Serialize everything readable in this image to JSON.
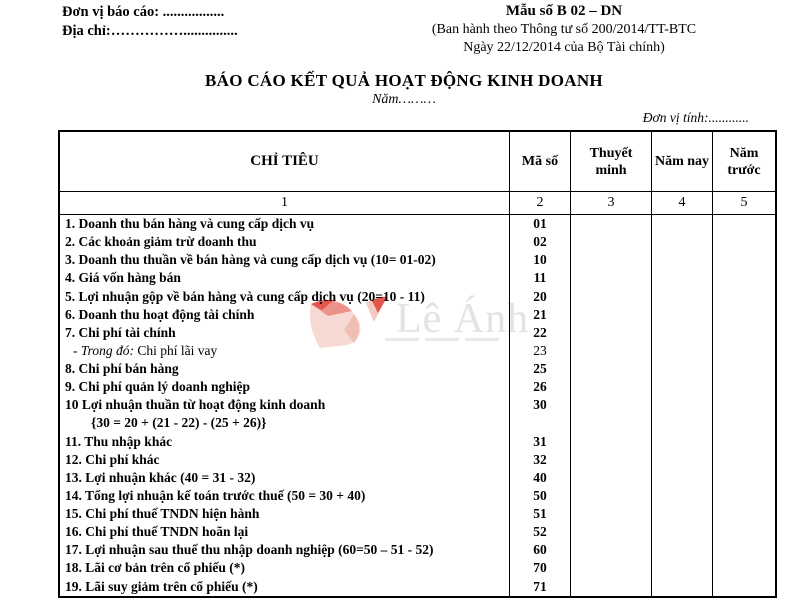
{
  "header": {
    "reporting_unit": "Đơn vị báo cáo: .................",
    "address": "Địa chỉ:……………...............",
    "form_no": "Mẫu số B 02 – DN",
    "issued_line1": "(Ban hành theo Thông tư số 200/2014/TT-BTC",
    "issued_line2": "Ngày 22/12/2014 của Bộ Tài chính)"
  },
  "title": {
    "main": "BÁO CÁO KẾT QUẢ HOẠT ĐỘNG KINH DOANH",
    "year": "Năm………",
    "unit": "Đơn vị tính:............"
  },
  "watermark": {
    "text": "Lê Ánh",
    "logo": "le-anh-logo",
    "logo_color_dark": "#e2564c",
    "logo_color_light": "#f7dad4",
    "text_color": "#e3e3e3"
  },
  "table": {
    "columns": [
      "CHỈ TIÊU",
      "Mã số",
      "Thuyết minh",
      "Năm nay",
      "Năm trước"
    ],
    "column_numbers": [
      "1",
      "2",
      "3",
      "4",
      "5"
    ],
    "rows": [
      {
        "label": "1. Doanh thu bán hàng và cung cấp dịch vụ",
        "code": "01",
        "bold": true
      },
      {
        "label": "2. Các khoản giảm trừ doanh thu",
        "code": "02",
        "bold": true
      },
      {
        "label": "3. Doanh thu thuần về bán hàng và cung cấp dịch vụ (10= 01-02)",
        "code": "10",
        "bold": true
      },
      {
        "label": "4. Giá vốn hàng bán",
        "code": "11",
        "bold": true
      },
      {
        "label": "5. Lợi nhuận gộp về bán hàng và cung cấp dịch vụ (20=10 - 11)",
        "code": "20",
        "bold": true
      },
      {
        "label": "6. Doanh thu hoạt động tài chính",
        "code": "21",
        "bold": true
      },
      {
        "label": "7. Chi phí tài chính",
        "code": "22",
        "bold": true
      },
      {
        "italic_prefix": "- Trong đó:",
        "label": " Chi phí lãi vay",
        "code": "23",
        "bold": false,
        "indent": 1
      },
      {
        "label": "8. Chi phí bán hàng",
        "code": "25",
        "bold": true
      },
      {
        "label": "9. Chi phí quản lý doanh nghiệp",
        "code": "26",
        "bold": true
      },
      {
        "label": "10 Lợi nhuận thuần từ hoạt động kinh doanh",
        "code": "30",
        "bold": true
      },
      {
        "label": "{30 = 20 + (21 - 22) - (25 + 26)}",
        "code": "",
        "bold": true,
        "indent": 2
      },
      {
        "label": "11. Thu nhập khác",
        "code": "31",
        "bold": true
      },
      {
        "label": "12. Chi phí khác",
        "code": "32",
        "bold": true
      },
      {
        "label": "13. Lợi nhuận khác (40 = 31 - 32)",
        "code": "40",
        "bold": true
      },
      {
        "label": "14. Tổng lợi nhuận kế toán trước thuế (50 = 30 + 40)",
        "code": "50",
        "bold": true
      },
      {
        "label": "15. Chi phí thuế TNDN hiện hành",
        "code": "51",
        "bold": true
      },
      {
        "label": "16. Chi phí thuế TNDN hoãn lại",
        "code": "52",
        "bold": true
      },
      {
        "label": "17. Lợi nhuận sau thuế thu nhập doanh nghiệp (60=50 – 51 - 52)",
        "code": "60",
        "bold": true
      },
      {
        "label": "18. Lãi cơ bản trên cổ phiếu (*)",
        "code": "70",
        "bold": true
      },
      {
        "label": "19. Lãi suy giảm trên cổ phiếu (*)",
        "code": "71",
        "bold": true
      }
    ]
  }
}
